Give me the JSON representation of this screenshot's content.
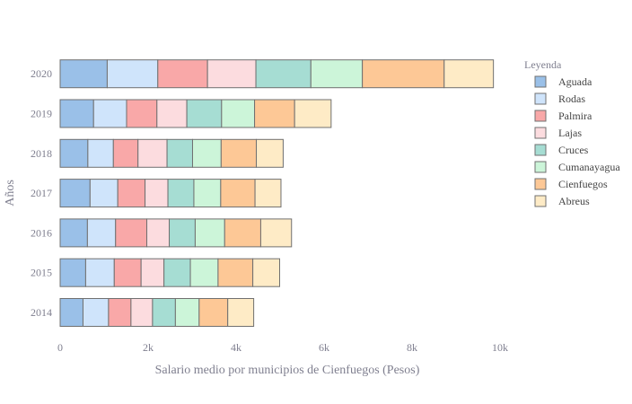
{
  "chart_data": {
    "type": "bar",
    "orientation": "horizontal",
    "barmode": "stack",
    "categories": [
      "2014",
      "2015",
      "2016",
      "2017",
      "2018",
      "2019",
      "2020"
    ],
    "xlabel": "Salario medio por municipios de Cienfuegos (Pesos)",
    "ylabel": "Años",
    "xlim": [
      0,
      10000
    ],
    "xticks": [
      {
        "value": 0,
        "label": "0"
      },
      {
        "value": 2000,
        "label": "2k"
      },
      {
        "value": 4000,
        "label": "4k"
      },
      {
        "value": 6000,
        "label": "6k"
      },
      {
        "value": 8000,
        "label": "8k"
      },
      {
        "value": 10000,
        "label": "10k"
      }
    ],
    "grid": false,
    "legend": {
      "title": "Leyenda",
      "placement": "right"
    },
    "series": [
      {
        "name": "Aguada",
        "color": "#9ac0e8",
        "values": [
          520,
          580,
          620,
          680,
          630,
          760,
          1070
        ]
      },
      {
        "name": "Rodas",
        "color": "#cfe4fb",
        "values": [
          580,
          650,
          640,
          630,
          580,
          750,
          1150
        ]
      },
      {
        "name": "Palmira",
        "color": "#f9a8a8",
        "values": [
          510,
          610,
          710,
          620,
          560,
          690,
          1130
        ]
      },
      {
        "name": "Lajas",
        "color": "#fcdcdf",
        "values": [
          490,
          520,
          510,
          520,
          660,
          680,
          1100
        ]
      },
      {
        "name": "Cruces",
        "color": "#a6ddd3",
        "values": [
          520,
          600,
          590,
          590,
          580,
          790,
          1250
        ]
      },
      {
        "name": "Cumanayagua",
        "color": "#ccf5d9",
        "values": [
          540,
          630,
          670,
          610,
          650,
          750,
          1170
        ]
      },
      {
        "name": "Cienfuegos",
        "color": "#fdc896",
        "values": [
          650,
          790,
          820,
          780,
          800,
          910,
          1860
        ]
      },
      {
        "name": "Abreus",
        "color": "#feebc6",
        "values": [
          590,
          610,
          700,
          590,
          610,
          830,
          1120
        ]
      }
    ]
  }
}
